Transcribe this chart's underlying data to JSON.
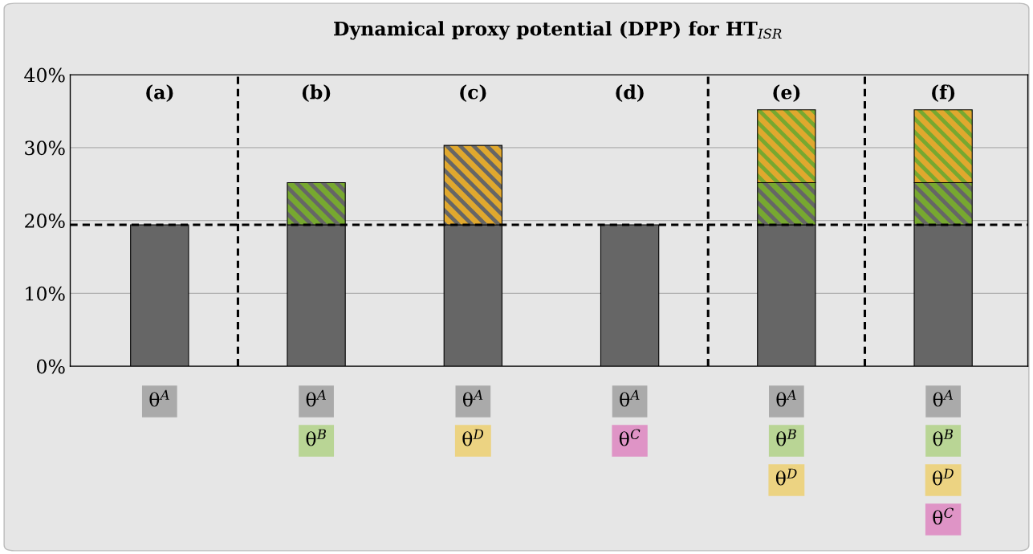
{
  "chart_data": {
    "type": "bar",
    "stacked": true,
    "title": "Dynamical proxy potential (DPP) for HT$_{ISR}$",
    "categories": [
      "(a)",
      "(b)",
      "(c)",
      "(d)",
      "(e)",
      "(f)"
    ],
    "series": [
      {
        "color": "#666666",
        "values": [
          19.4,
          19.4,
          19.4,
          19.4,
          19.4,
          19.4
        ]
      },
      {
        "color": "#77a830",
        "values": [
          null,
          5.8,
          null,
          null,
          5.8,
          5.8
        ]
      },
      {
        "color": "#e0a82e",
        "values": [
          null,
          null,
          10.9,
          null,
          10.0,
          10.0
        ]
      }
    ],
    "ylim": [
      0,
      40
    ],
    "yticks": [
      {
        "value": 0,
        "label": "0%"
      },
      {
        "value": 10,
        "label": "10%"
      },
      {
        "value": 20,
        "label": "20%"
      },
      {
        "value": 30,
        "label": "30%"
      },
      {
        "value": 40,
        "label": "40%"
      }
    ],
    "grid": "y",
    "ref_lines": [
      {
        "axis": "y",
        "value": 19.4,
        "color": "#000000",
        "line_style": "dashed"
      }
    ],
    "annotations": [
      "θ$^{A}$",
      "θ$^{A}$",
      "θ$^{B}$",
      "θ$^{A}$",
      "θ$^{D}$",
      "θ$^{A}$",
      "θ$^{C}$",
      "θ$^{A}$",
      "θ$^{B}$",
      "θ$^{D}$",
      "θ$^{A}$",
      "θ$^{B}$",
      "θ$^{D}$",
      "θ$^{C}$"
    ]
  }
}
